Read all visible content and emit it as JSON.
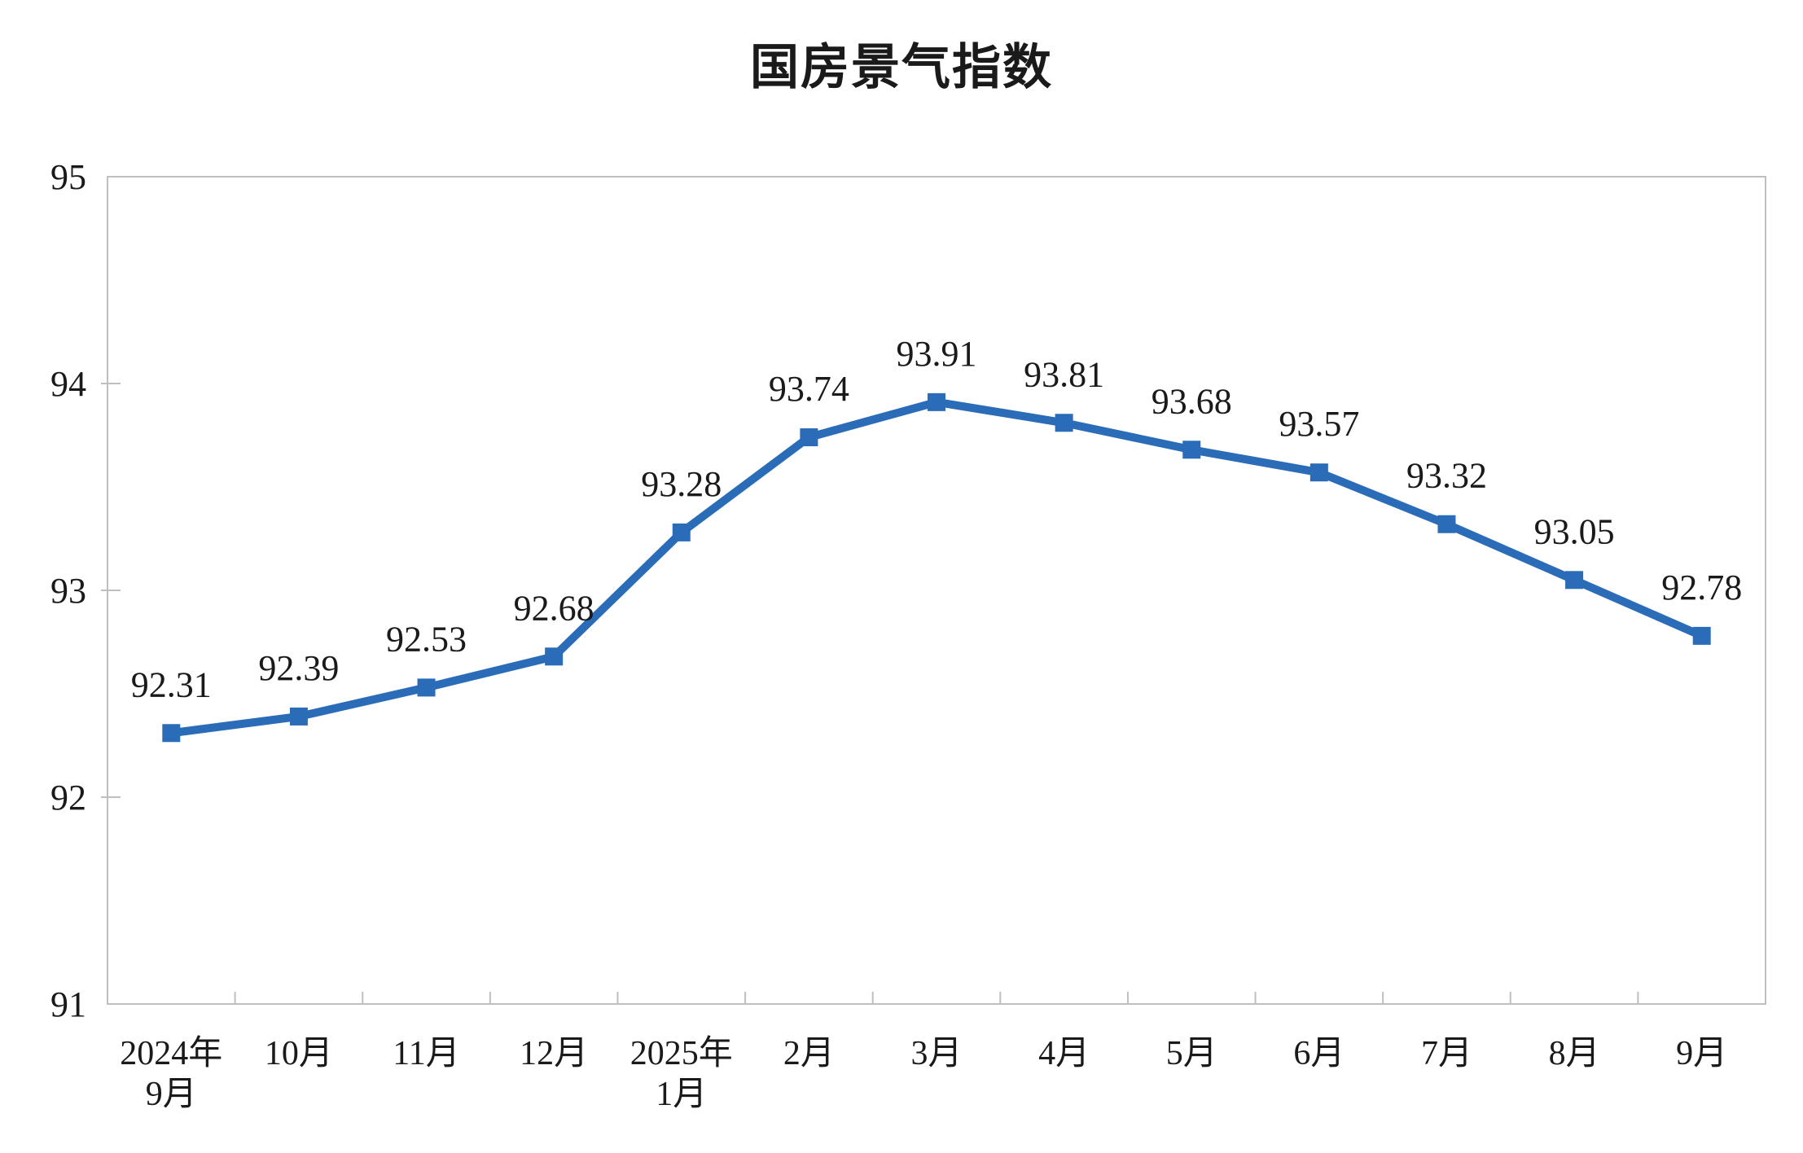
{
  "chart_data": {
    "type": "line",
    "title": "国房景气指数",
    "categories": [
      "2024年\n9月",
      "10月",
      "11月",
      "12月",
      "2025年\n1月",
      "2月",
      "3月",
      "4月",
      "5月",
      "6月",
      "7月",
      "8月",
      "9月"
    ],
    "values": [
      92.31,
      92.39,
      92.53,
      92.68,
      93.28,
      93.74,
      93.91,
      93.81,
      93.68,
      93.57,
      93.32,
      93.05,
      92.78
    ],
    "data_labels": [
      "92.31",
      "92.39",
      "92.53",
      "92.68",
      "93.28",
      "93.74",
      "93.91",
      "93.81",
      "93.68",
      "93.57",
      "93.32",
      "93.05",
      "92.78"
    ],
    "xlabel": "",
    "ylabel": "",
    "ylim": [
      91,
      95
    ],
    "ytick_labels": [
      "91",
      "92",
      "93",
      "94",
      "95"
    ],
    "grid": false,
    "legend_position": "none",
    "series_name": "国房景气指数",
    "series_color": "#2B6CB8",
    "axis_color": "#BFBFBF",
    "text_color": "#1A1A1A",
    "marker_shape": "square",
    "label_position": "above"
  }
}
